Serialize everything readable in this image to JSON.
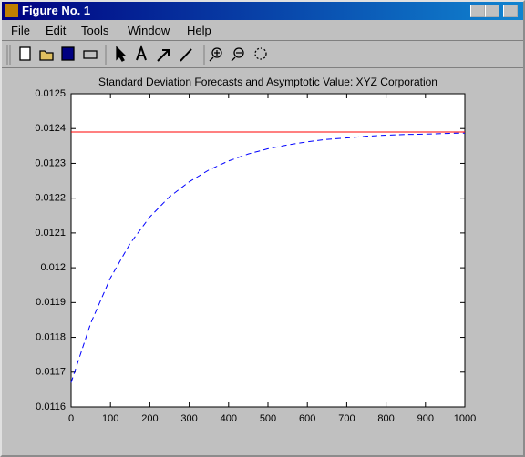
{
  "window": {
    "title": "Figure No. 1",
    "menu": [
      "File",
      "Edit",
      "Tools",
      "Window",
      "Help"
    ]
  },
  "chart_data": {
    "type": "line",
    "title": "Standard Deviation Forecasts and Asymptotic Value: XYZ Corporation",
    "series": [
      {
        "color": "#0000ff",
        "style": "dashed",
        "x": [
          0,
          50,
          100,
          150,
          200,
          250,
          300,
          350,
          400,
          450,
          500,
          550,
          600,
          650,
          700,
          750,
          800,
          850,
          900,
          950,
          1000
        ],
        "values": [
          0.01167,
          0.011841,
          0.011971,
          0.01207,
          0.012146,
          0.012204,
          0.012247,
          0.012281,
          0.012307,
          0.012327,
          0.012342,
          0.012353,
          0.012362,
          0.012369,
          0.012373,
          0.012378,
          0.012381,
          0.012383,
          0.012384,
          0.012386,
          0.012387
        ]
      },
      {
        "color": "#ff0000",
        "style": "solid",
        "x": [
          0,
          1000
        ],
        "values": [
          0.01239,
          0.01239
        ]
      }
    ],
    "xlim": [
      0,
      1000
    ],
    "xticks": [
      0,
      100,
      200,
      300,
      400,
      500,
      600,
      700,
      800,
      900,
      1000
    ],
    "ylim": [
      0.0116,
      0.0125
    ],
    "yticks": [
      0.0116,
      0.0117,
      0.0118,
      0.0119,
      0.012,
      0.0121,
      0.0122,
      0.0123,
      0.0124,
      0.0125
    ]
  }
}
